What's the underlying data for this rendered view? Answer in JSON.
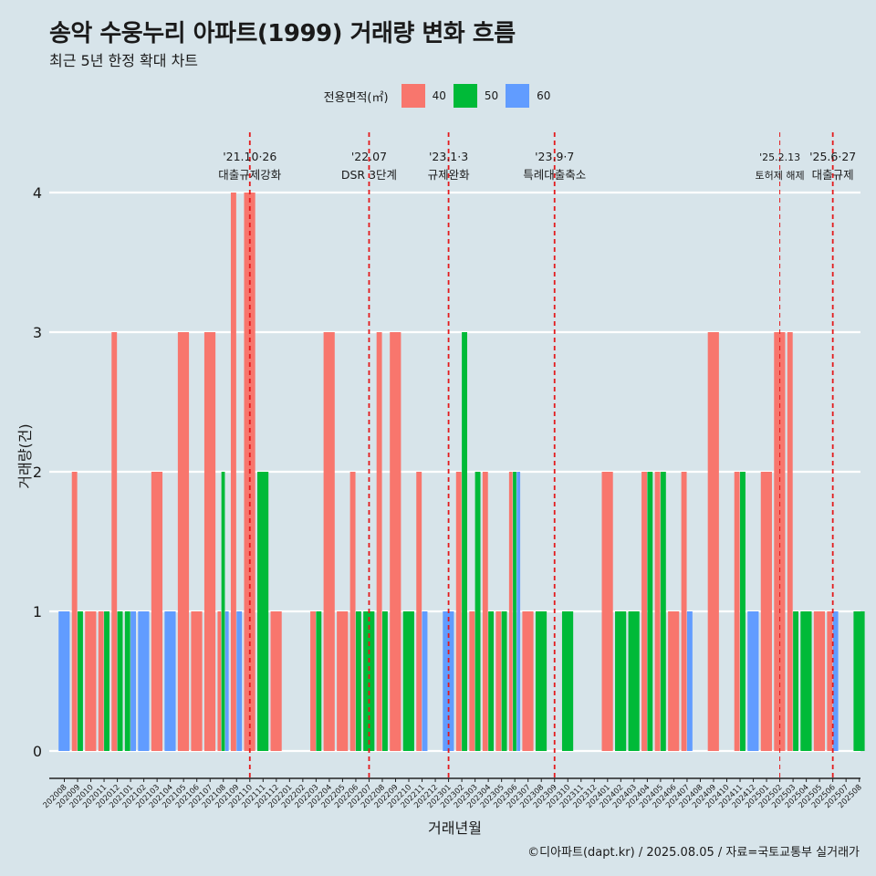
{
  "title": "송악 수웅누리 아파트(1999) 거래량 변화 흐름",
  "subtitle": "최근 5년 한정 확대 차트",
  "caption": "©디아파트(dapt.kr) / 2025.08.05 / 자료=국토교통부 실거래가",
  "legend": {
    "title": "전용면적(㎡)",
    "items": [
      {
        "label": "40",
        "color": "#f8766d"
      },
      {
        "label": "50",
        "color": "#00ba38"
      },
      {
        "label": "60",
        "color": "#619cff"
      }
    ]
  },
  "chart_data": {
    "type": "bar",
    "xlabel": "거래년월",
    "ylabel": "거래량(건)",
    "ylim": [
      -0.2,
      4.35
    ],
    "yticks": [
      0,
      1,
      2,
      3,
      4
    ],
    "grid": true,
    "legend_position": "top",
    "categories": [
      "202008",
      "202009",
      "202010",
      "202011",
      "202012",
      "202101",
      "202102",
      "202103",
      "202104",
      "202105",
      "202106",
      "202107",
      "202108",
      "202109",
      "202110",
      "202111",
      "202112",
      "202201",
      "202202",
      "202203",
      "202204",
      "202205",
      "202206",
      "202207",
      "202208",
      "202209",
      "202210",
      "202211",
      "202212",
      "202301",
      "202302",
      "202303",
      "202304",
      "202305",
      "202306",
      "202307",
      "202308",
      "202309",
      "202310",
      "202311",
      "202312",
      "202401",
      "202402",
      "202403",
      "202404",
      "202405",
      "202406",
      "202407",
      "202408",
      "202409",
      "202410",
      "202411",
      "202412",
      "202501",
      "202502",
      "202503",
      "202504",
      "202505",
      "202506",
      "202507",
      "202508"
    ],
    "series": [
      {
        "name": "40",
        "color": "#f8766d",
        "values": [
          0,
          2,
          1,
          1,
          3,
          0,
          0,
          2,
          0,
          3,
          1,
          3,
          1,
          4,
          4,
          0,
          1,
          0,
          0,
          1,
          3,
          1,
          2,
          0,
          3,
          3,
          0,
          2,
          0,
          0,
          2,
          1,
          2,
          1,
          2,
          1,
          0,
          0,
          0,
          0,
          0,
          2,
          0,
          0,
          2,
          2,
          1,
          2,
          0,
          3,
          0,
          2,
          0,
          2,
          3,
          3,
          0,
          1,
          1,
          0,
          0
        ]
      },
      {
        "name": "50",
        "color": "#00ba38",
        "values": [
          0,
          1,
          0,
          1,
          1,
          1,
          0,
          0,
          0,
          0,
          0,
          0,
          2,
          0,
          0,
          2,
          0,
          0,
          0,
          1,
          0,
          0,
          1,
          1,
          1,
          0,
          1,
          0,
          0,
          0,
          3,
          2,
          1,
          1,
          2,
          0,
          1,
          0,
          1,
          0,
          0,
          0,
          1,
          1,
          2,
          2,
          0,
          0,
          0,
          0,
          0,
          2,
          0,
          0,
          0,
          1,
          1,
          0,
          0,
          0,
          1
        ]
      },
      {
        "name": "60",
        "color": "#619cff",
        "values": [
          1,
          0,
          0,
          0,
          0,
          1,
          1,
          0,
          1,
          0,
          0,
          0,
          1,
          1,
          0,
          0,
          0,
          0,
          0,
          0,
          0,
          0,
          0,
          0,
          0,
          0,
          0,
          1,
          0,
          1,
          0,
          0,
          0,
          0,
          2,
          0,
          0,
          0,
          0,
          0,
          0,
          0,
          0,
          0,
          0,
          0,
          0,
          1,
          0,
          0,
          0,
          0,
          1,
          0,
          0,
          0,
          0,
          0,
          1,
          0,
          0
        ]
      }
    ],
    "events": [
      {
        "date": "202110",
        "label1": "'21.10·26",
        "label2": "대출규제강화"
      },
      {
        "date": "202207",
        "label1": "'22.07",
        "label2": "DSR 3단계"
      },
      {
        "date": "202301",
        "label1": "'23.1·3",
        "label2": "규제완화"
      },
      {
        "date": "202309",
        "label1": "'23.9·7",
        "label2": "특례대출축소"
      },
      {
        "date": "202502",
        "label1": "'25.2.13",
        "label2": "토허제 해제"
      },
      {
        "date": "202506",
        "label1": "'25.6·27",
        "label2": "대출규제"
      }
    ]
  }
}
